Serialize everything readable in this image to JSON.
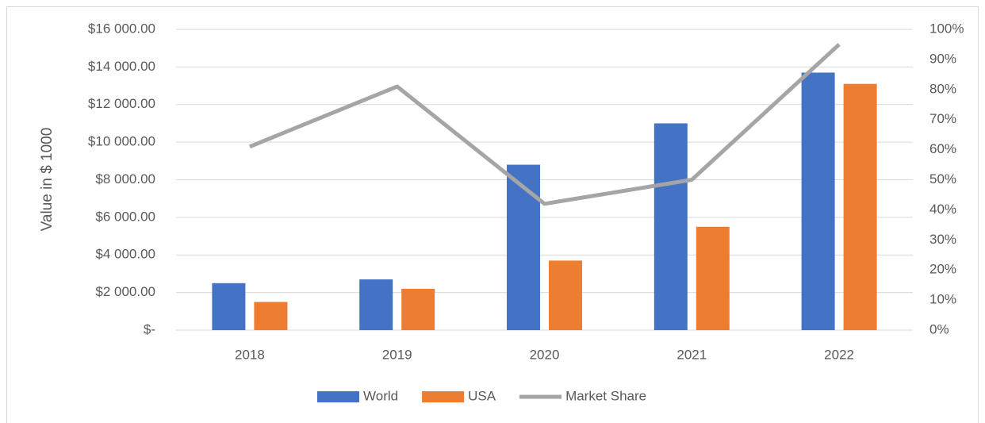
{
  "chart_data": {
    "type": "bar",
    "y_axis_label": "Value in $ 1000",
    "categories": [
      "2018",
      "2019",
      "2020",
      "2021",
      "2022"
    ],
    "series": [
      {
        "name": "World",
        "color": "#4472c4",
        "values": [
          2500,
          2700,
          8800,
          11000,
          13700
        ]
      },
      {
        "name": "USA",
        "color": "#ed7d31",
        "values": [
          1500,
          2200,
          3700,
          5500,
          13100
        ]
      },
      {
        "name": "Market Share",
        "color": "#a5a5a5",
        "type": "line",
        "axis": "y2",
        "values": [
          61,
          81,
          42,
          50,
          95
        ]
      }
    ],
    "ylim": [
      0,
      16000
    ],
    "yticks": [
      {
        "value": 0,
        "label": "$-"
      },
      {
        "value": 2000,
        "label": "$2 000.00"
      },
      {
        "value": 4000,
        "label": "$4 000.00"
      },
      {
        "value": 6000,
        "label": "$6 000.00"
      },
      {
        "value": 8000,
        "label": "$8 000.00"
      },
      {
        "value": 10000,
        "label": "$10 000.00"
      },
      {
        "value": 12000,
        "label": "$12 000.00"
      },
      {
        "value": 14000,
        "label": "$14 000.00"
      },
      {
        "value": 16000,
        "label": "$16 000.00"
      }
    ],
    "y2lim": [
      0,
      100
    ],
    "y2ticks": [
      {
        "value": 0,
        "label": "0%"
      },
      {
        "value": 10,
        "label": "10%"
      },
      {
        "value": 20,
        "label": "20%"
      },
      {
        "value": 30,
        "label": "30%"
      },
      {
        "value": 40,
        "label": "40%"
      },
      {
        "value": 50,
        "label": "50%"
      },
      {
        "value": 60,
        "label": "60%"
      },
      {
        "value": 70,
        "label": "70%"
      },
      {
        "value": 80,
        "label": "80%"
      },
      {
        "value": 90,
        "label": "90%"
      },
      {
        "value": 100,
        "label": "100%"
      }
    ],
    "grid": true,
    "legend": "bottom"
  }
}
